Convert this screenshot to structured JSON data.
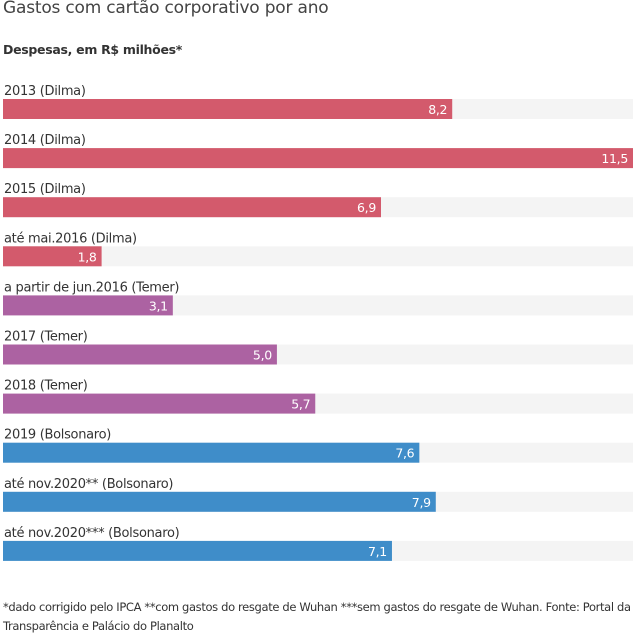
{
  "chart_data": {
    "type": "bar",
    "orientation": "horizontal",
    "title": "Gastos com cartão corporativo por ano",
    "subtitle": "Despesas, em R$ milhões*",
    "xlabel": "",
    "ylabel": "",
    "xlim": [
      0,
      11.5
    ],
    "grid": false,
    "categories": [
      "2013 (Dilma)",
      "2014 (Dilma)",
      "2015 (Dilma)",
      "até mai.2016 (Dilma)",
      "a partir de jun.2016 (Temer)",
      "2017 (Temer)",
      "2018 (Temer)",
      "2019 (Bolsonaro)",
      "até nov.2020** (Bolsonaro)",
      "até nov.2020*** (Bolsonaro)"
    ],
    "values": [
      8.2,
      11.5,
      6.9,
      1.8,
      3.1,
      5.0,
      5.7,
      7.6,
      7.9,
      7.1
    ],
    "value_labels": [
      "8,2",
      "11,5",
      "6,9",
      "1,8",
      "3,1",
      "5,0",
      "5,7",
      "7,6",
      "7,9",
      "7,1"
    ],
    "groups": [
      "Dilma",
      "Dilma",
      "Dilma",
      "Dilma",
      "Temer",
      "Temer",
      "Temer",
      "Bolsonaro",
      "Bolsonaro",
      "Bolsonaro"
    ],
    "colors": {
      "Dilma": "#d35a6c",
      "Temer": "#ac62a2",
      "Bolsonaro": "#3f8dc9",
      "track": "#f4f4f4"
    }
  },
  "footnote": "*dado corrigido pelo IPCA **com gastos do resgate de Wuhan ***sem gastos do resgate de Wuhan. Fonte: Portal da Transparência e Palácio do Planalto"
}
